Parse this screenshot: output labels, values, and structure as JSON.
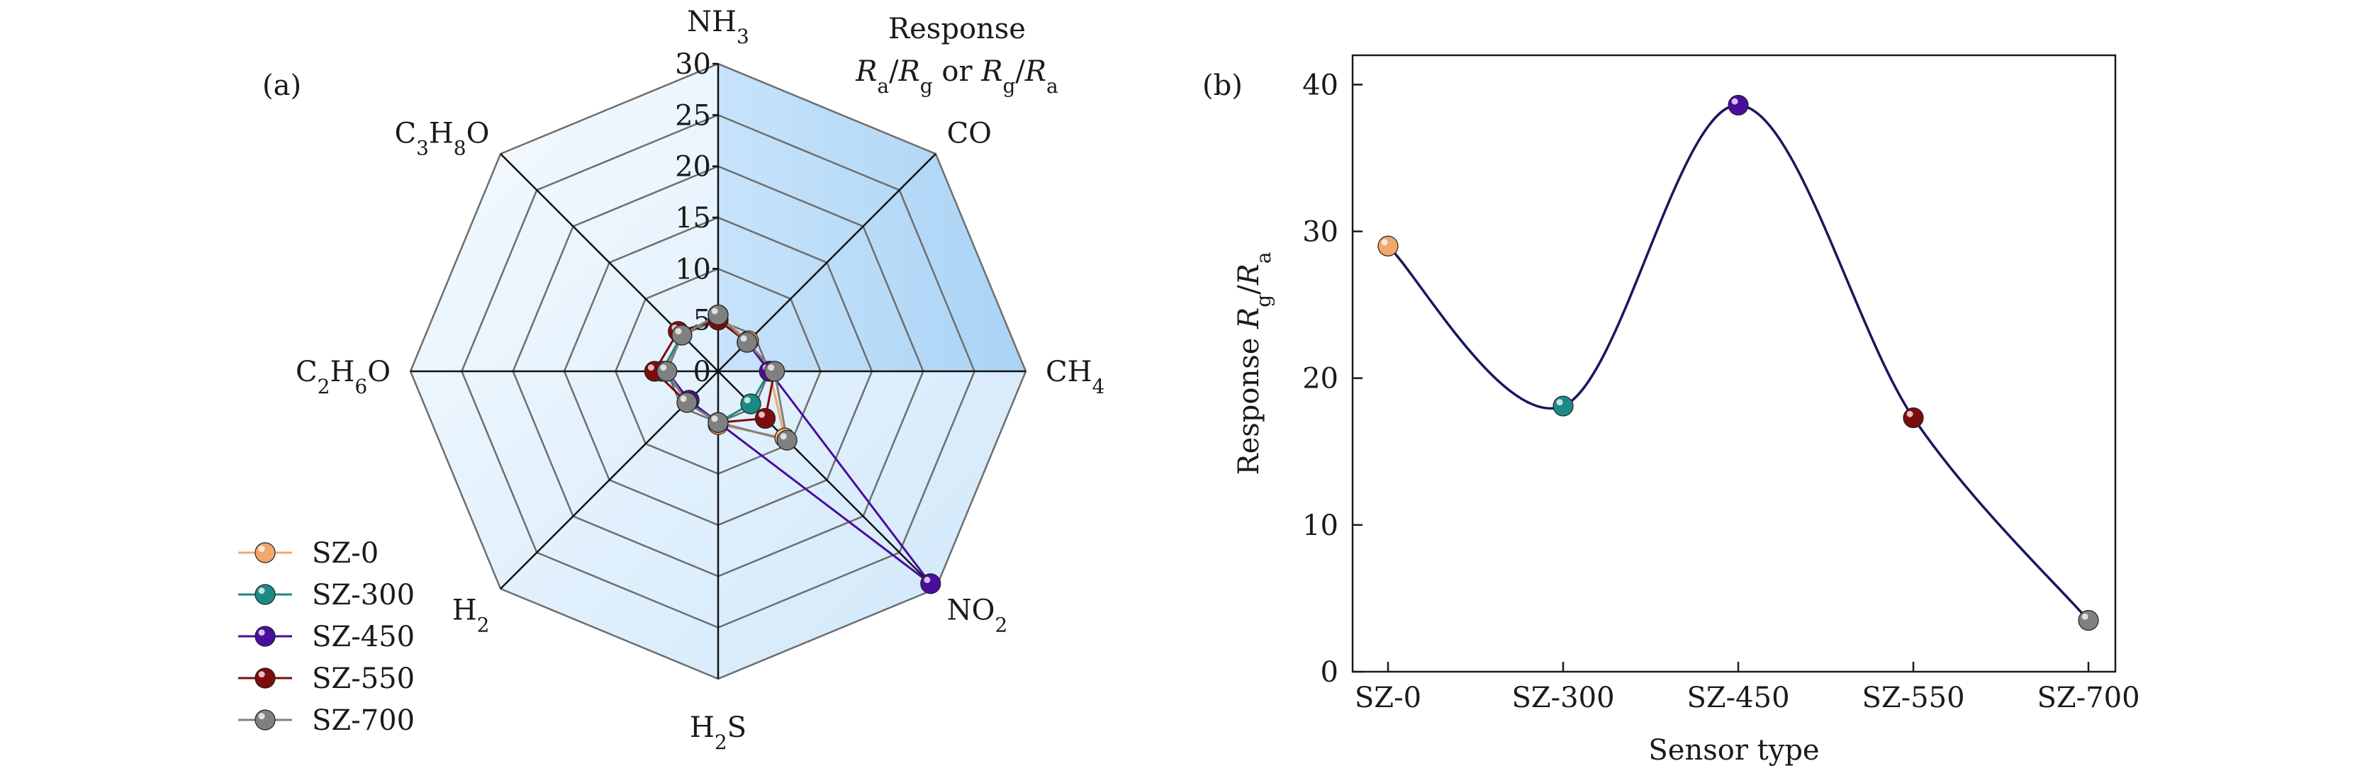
{
  "charts": {
    "radar": {
      "panel_label": "(a)",
      "value_title_line1": "Response",
      "value_title_line2_parts": [
        {
          "t": "R",
          "i": true
        },
        {
          "t": "a",
          "sub": true
        },
        {
          "t": "/"
        },
        {
          "t": "R",
          "i": true
        },
        {
          "t": "g",
          "sub": true
        },
        {
          "t": " or "
        },
        {
          "t": "R",
          "i": true
        },
        {
          "t": "g",
          "sub": true
        },
        {
          "t": "/"
        },
        {
          "t": "R",
          "i": true
        },
        {
          "t": "a",
          "sub": true
        }
      ]
    },
    "line": {
      "panel_label": "(b)",
      "xlabel": "Sensor type",
      "ylabel_parts": [
        {
          "t": "Response "
        },
        {
          "t": "R",
          "i": true
        },
        {
          "t": "g",
          "sub": true
        },
        {
          "t": "/"
        },
        {
          "t": "R",
          "i": true
        },
        {
          "t": "a",
          "sub": true
        }
      ]
    }
  },
  "chart_data": [
    {
      "type": "radar",
      "axes": [
        {
          "name": "NH3",
          "parts": [
            {
              "t": "NH"
            },
            {
              "t": "3",
              "sub": true
            }
          ]
        },
        {
          "name": "CO",
          "parts": [
            {
              "t": "CO"
            }
          ]
        },
        {
          "name": "CH4",
          "parts": [
            {
              "t": "CH"
            },
            {
              "t": "4",
              "sub": true
            }
          ]
        },
        {
          "name": "NO2",
          "parts": [
            {
              "t": "NO"
            },
            {
              "t": "2",
              "sub": true
            }
          ]
        },
        {
          "name": "H2S",
          "parts": [
            {
              "t": "H"
            },
            {
              "t": "2",
              "sub": true
            },
            {
              "t": "S"
            }
          ]
        },
        {
          "name": "H2",
          "parts": [
            {
              "t": "H"
            },
            {
              "t": "2",
              "sub": true
            }
          ]
        },
        {
          "name": "C2H6O",
          "parts": [
            {
              "t": "C"
            },
            {
              "t": "2",
              "sub": true
            },
            {
              "t": "H"
            },
            {
              "t": "6",
              "sub": true
            },
            {
              "t": "O"
            }
          ]
        },
        {
          "name": "C3H8O",
          "parts": [
            {
              "t": "C"
            },
            {
              "t": "3",
              "sub": true
            },
            {
              "t": "H"
            },
            {
              "t": "8",
              "sub": true
            },
            {
              "t": "O"
            }
          ]
        }
      ],
      "r_ticks": [
        "0",
        "5",
        "10",
        "15",
        "20",
        "25",
        "30"
      ],
      "r_max": 30,
      "series": [
        {
          "name": "SZ-0",
          "color": "#f4a76b",
          "values": [
            5.5,
            4.2,
            5.0,
            9.2,
            5.2,
            4.0,
            5.2,
            5.0
          ]
        },
        {
          "name": "SZ-300",
          "color": "#1c8a86",
          "values": [
            5.5,
            4.0,
            5.0,
            4.5,
            5.0,
            4.0,
            5.5,
            5.0
          ]
        },
        {
          "name": "SZ-450",
          "color": "#4a0d9c",
          "values": [
            5.5,
            4.0,
            5.0,
            29.3,
            5.0,
            4.0,
            5.0,
            5.0
          ]
        },
        {
          "name": "SZ-550",
          "color": "#7d0c0c",
          "values": [
            5.0,
            4.0,
            5.5,
            6.5,
            5.0,
            4.3,
            6.2,
            5.5
          ]
        },
        {
          "name": "SZ-700",
          "color": "#808080",
          "values": [
            5.5,
            4.0,
            5.5,
            9.5,
            5.0,
            4.3,
            5.0,
            5.0
          ]
        }
      ],
      "legend_placement": "bottom-left"
    },
    {
      "type": "line",
      "categories": [
        "SZ-0",
        "SZ-300",
        "SZ-450",
        "SZ-550",
        "SZ-700"
      ],
      "values": [
        29.0,
        18.1,
        38.6,
        17.3,
        3.5
      ],
      "colors": [
        "#f4a76b",
        "#1c8a86",
        "#4a0d9c",
        "#7d0c0c",
        "#808080"
      ],
      "line_color": "#17185e",
      "ylim": [
        0,
        42
      ],
      "yticks": [
        "0",
        "10",
        "20",
        "30",
        "40"
      ],
      "grid": false
    }
  ]
}
